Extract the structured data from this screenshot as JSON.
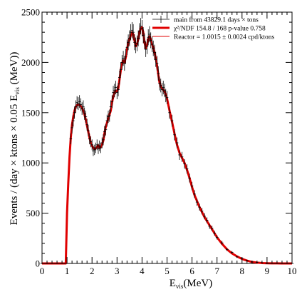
{
  "chart_data": {
    "type": "line",
    "xlabel": {
      "main": "E",
      "sub": "vis",
      "unit": "(MeV)"
    },
    "ylabel": {
      "prefix": "Events / (day × ktons × 0.05 E",
      "sub": "vis",
      "suffix": " (MeV))"
    },
    "xlim": [
      0,
      10
    ],
    "ylim": [
      0,
      2500
    ],
    "xticks": [
      "0",
      "1",
      "2",
      "3",
      "4",
      "5",
      "6",
      "7",
      "8",
      "9",
      "10"
    ],
    "yticks": [
      "0",
      "500",
      "1000",
      "1500",
      "2000",
      "2500"
    ],
    "grid": false,
    "legend": {
      "placement": "top-right",
      "entries": [
        {
          "key": "data",
          "label": "main from 43829.1 days × tons",
          "color": "#000000",
          "style": "marker"
        },
        {
          "key": "fit",
          "label": "χ²/NDF 154.8 / 168 p-value 0.758",
          "color": "#e00000",
          "style": "thick"
        },
        {
          "key": "reactor",
          "label": "Reactor = 1.0015 ± 0.0024 cpd/ktons",
          "color": "#e00000",
          "style": "thin"
        }
      ]
    },
    "series": [
      {
        "key": "fit",
        "color": "#e00000",
        "x": [
          0,
          0.95,
          0.97,
          1.0,
          1.05,
          1.1,
          1.15,
          1.2,
          1.25,
          1.3,
          1.35,
          1.4,
          1.45,
          1.5,
          1.55,
          1.6,
          1.65,
          1.7,
          1.75,
          1.8,
          1.85,
          1.9,
          1.95,
          2.0,
          2.05,
          2.1,
          2.15,
          2.2,
          2.25,
          2.3,
          2.35,
          2.4,
          2.45,
          2.5,
          2.55,
          2.6,
          2.65,
          2.7,
          2.75,
          2.8,
          2.85,
          2.9,
          2.95,
          3.0,
          3.05,
          3.1,
          3.15,
          3.2,
          3.25,
          3.3,
          3.35,
          3.4,
          3.45,
          3.5,
          3.55,
          3.6,
          3.65,
          3.7,
          3.75,
          3.8,
          3.85,
          3.9,
          3.95,
          4.0,
          4.05,
          4.1,
          4.15,
          4.2,
          4.25,
          4.3,
          4.35,
          4.4,
          4.45,
          4.5,
          4.55,
          4.6,
          4.65,
          4.7,
          4.75,
          4.8,
          4.85,
          4.9,
          4.95,
          5.0,
          5.1,
          5.2,
          5.3,
          5.4,
          5.5,
          5.6,
          5.7,
          5.8,
          5.9,
          6.0,
          6.1,
          6.2,
          6.3,
          6.4,
          6.5,
          6.6,
          6.7,
          6.8,
          6.9,
          7.0,
          7.2,
          7.4,
          7.6,
          7.8,
          8.0,
          8.2,
          8.4,
          8.6,
          8.8,
          9.0,
          9.2,
          9.4,
          9.6,
          9.8,
          10.0
        ],
        "y": [
          0,
          0,
          200,
          500,
          800,
          1060,
          1250,
          1380,
          1460,
          1520,
          1560,
          1575,
          1580,
          1575,
          1565,
          1545,
          1520,
          1480,
          1430,
          1370,
          1310,
          1250,
          1200,
          1170,
          1150,
          1140,
          1145,
          1160,
          1175,
          1150,
          1160,
          1180,
          1220,
          1300,
          1360,
          1400,
          1440,
          1480,
          1520,
          1600,
          1660,
          1700,
          1720,
          1710,
          1740,
          1830,
          1920,
          1990,
          2020,
          2000,
          2050,
          2130,
          2190,
          2230,
          2270,
          2300,
          2280,
          2220,
          2160,
          2180,
          2230,
          2300,
          2340,
          2350,
          2300,
          2200,
          2140,
          2170,
          2230,
          2260,
          2230,
          2180,
          2150,
          2100,
          2040,
          1970,
          1880,
          1800,
          1760,
          1740,
          1730,
          1710,
          1680,
          1640,
          1520,
          1410,
          1290,
          1180,
          1100,
          1050,
          1000,
          930,
          850,
          760,
          680,
          620,
          560,
          510,
          460,
          420,
          380,
          340,
          300,
          260,
          195,
          140,
          100,
          70,
          45,
          28,
          15,
          8,
          4,
          2,
          1,
          0.5,
          0,
          0,
          0
        ]
      },
      {
        "key": "data",
        "color": "#000000",
        "x": [
          1.15,
          1.2,
          1.25,
          1.3,
          1.35,
          1.4,
          1.45,
          1.5,
          1.55,
          1.6,
          1.65,
          1.7,
          1.75,
          1.8,
          1.85,
          1.9,
          1.95,
          2.0,
          2.05,
          2.1,
          2.15,
          2.2,
          2.25,
          2.3,
          2.35,
          2.4,
          2.45,
          2.5,
          2.55,
          2.6,
          2.65,
          2.7,
          2.75,
          2.8,
          2.85,
          2.9,
          2.95,
          3.0,
          3.05,
          3.1,
          3.15,
          3.2,
          3.25,
          3.3,
          3.35,
          3.4,
          3.45,
          3.5,
          3.55,
          3.6,
          3.65,
          3.7,
          3.75,
          3.8,
          3.85,
          3.9,
          3.95,
          4.0,
          4.05,
          4.1,
          4.15,
          4.2,
          4.25,
          4.3,
          4.35,
          4.4,
          4.45,
          4.5,
          4.55,
          4.6,
          4.65,
          4.7,
          4.75,
          4.8,
          4.85,
          4.9,
          4.95,
          5.0,
          5.1,
          5.2,
          5.3,
          5.4,
          5.5,
          5.6,
          5.7,
          5.8,
          5.9,
          6.0,
          6.1,
          6.2,
          6.3,
          6.4,
          6.5,
          6.6,
          6.7,
          6.8,
          6.9,
          7.0,
          7.2,
          7.4,
          7.6,
          7.8,
          8.0,
          8.2,
          8.4,
          8.6,
          8.8,
          9.0
        ],
        "y": [
          1240,
          1350,
          1420,
          1500,
          1560,
          1600,
          1590,
          1610,
          1580,
          1540,
          1560,
          1490,
          1460,
          1380,
          1320,
          1240,
          1210,
          1180,
          1120,
          1130,
          1150,
          1180,
          1140,
          1170,
          1150,
          1200,
          1230,
          1310,
          1330,
          1420,
          1460,
          1470,
          1560,
          1610,
          1700,
          1720,
          1750,
          1700,
          1730,
          1850,
          1930,
          2000,
          2040,
          1990,
          2060,
          2150,
          2200,
          2240,
          2300,
          2320,
          2300,
          2200,
          2170,
          2190,
          2240,
          2310,
          2360,
          2340,
          2270,
          2210,
          2130,
          2160,
          2250,
          2280,
          2220,
          2180,
          2140,
          2100,
          2030,
          1990,
          1890,
          1790,
          1770,
          1730,
          1750,
          1720,
          1670,
          1650,
          1500,
          1420,
          1280,
          1200,
          1080,
          1060,
          990,
          940,
          850,
          770,
          690,
          610,
          560,
          520,
          470,
          430,
          370,
          350,
          300,
          260,
          205,
          140,
          110,
          65,
          50,
          30,
          15,
          10,
          6,
          3
        ]
      }
    ]
  }
}
